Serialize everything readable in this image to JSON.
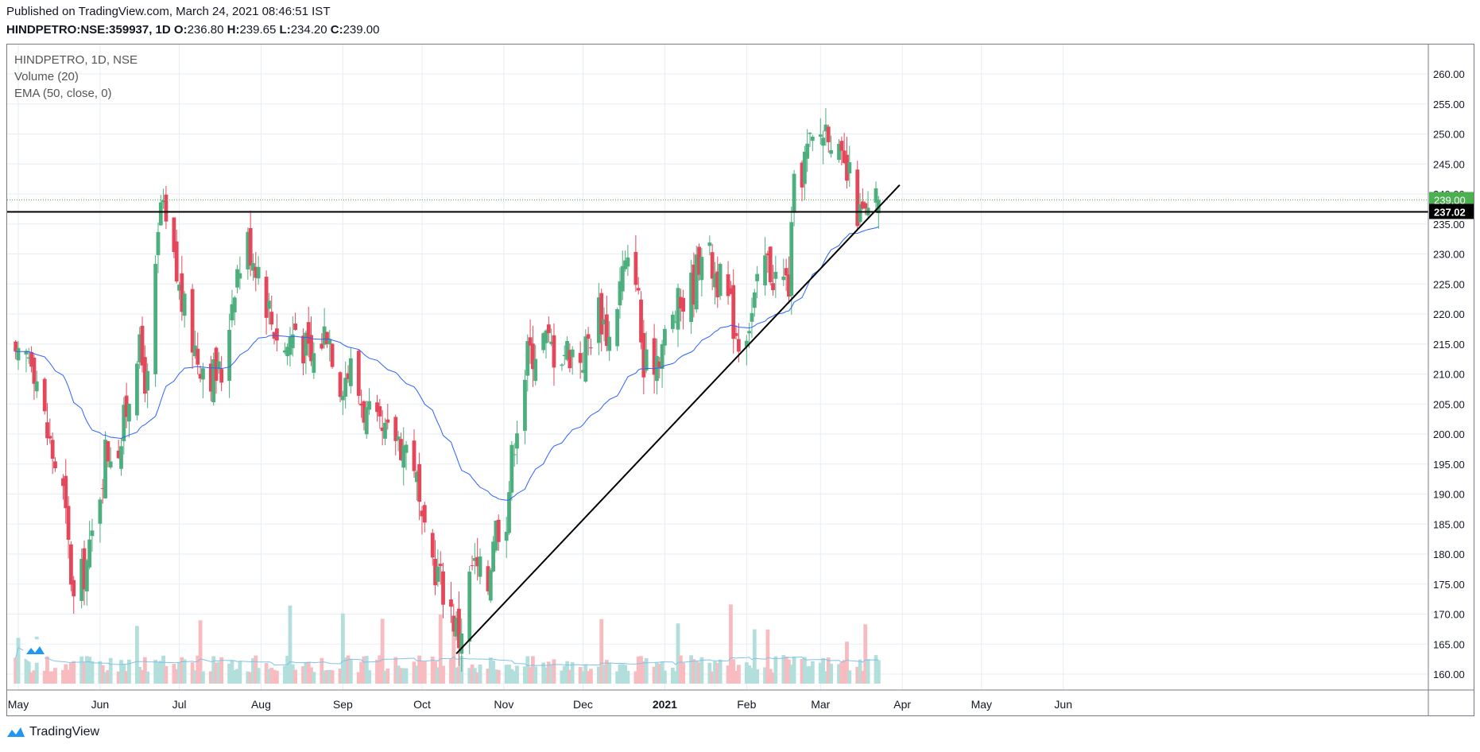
{
  "header": {
    "published": "Published on TradingView.com, March 24, 2021 08:46:51 IST",
    "symbol": "HINDPETRO:NSE:359937, 1D",
    "o_label": "O:",
    "o_value": "236.80",
    "h_label": "H:",
    "h_value": "239.65",
    "l_label": "L:",
    "l_value": "234.20",
    "c_label": "C:",
    "c_value": "239.00"
  },
  "legend": {
    "symbol": "HINDPETRO, 1D, NSE",
    "volume": "Volume (20)",
    "ema": "EMA (50, close, 0)"
  },
  "footer": {
    "brand": "TradingView"
  },
  "colors": {
    "up": "#26a69a",
    "down": "#ef5350",
    "up_candle": "#4caf7d",
    "down_candle": "#e5475a",
    "vol_up": "#b2dfdb",
    "vol_down": "#f8bbbf",
    "ema": "#2962ff",
    "grid": "#e7edf3",
    "line": "#000000",
    "last_price_bg": "#4caf50",
    "level_bg": "#000000"
  },
  "chart_data": {
    "type": "candlestick",
    "y_axis": {
      "min": 160,
      "max": 260,
      "ticks": [
        "160.00",
        "165.00",
        "170.00",
        "175.00",
        "180.00",
        "185.00",
        "190.00",
        "195.00",
        "200.00",
        "205.00",
        "210.00",
        "215.00",
        "220.00",
        "225.00",
        "230.00",
        "235.00",
        "240.00",
        "245.00",
        "250.00",
        "255.00",
        "260.00"
      ]
    },
    "x_axis": {
      "ticks": [
        "May",
        "Jun",
        "Jul",
        "Aug",
        "Sep",
        "Oct",
        "Nov",
        "Dec",
        "2021",
        "Feb",
        "Mar",
        "Apr",
        "May",
        "Jun"
      ],
      "bold_ticks": [
        "2021"
      ]
    },
    "last_price": "239.00",
    "horizontal_level": {
      "value": 237.02,
      "label": "237.02"
    },
    "trendline": {
      "start": {
        "date": "2020-10-14",
        "value": 163.4
      },
      "end": {
        "date": "2021-03-31",
        "value": 241.5
      }
    },
    "ema_period": 50,
    "close_anchors": [
      [
        "2020-04-30",
        211
      ],
      [
        "2020-05-06",
        214
      ],
      [
        "2020-05-12",
        200
      ],
      [
        "2020-05-18",
        190
      ],
      [
        "2020-05-22",
        172
      ],
      [
        "2020-05-28",
        180
      ],
      [
        "2020-06-03",
        197
      ],
      [
        "2020-06-09",
        199
      ],
      [
        "2020-06-15",
        215
      ],
      [
        "2020-06-19",
        208
      ],
      [
        "2020-06-24",
        238
      ],
      [
        "2020-06-29",
        228
      ],
      [
        "2020-07-03",
        220
      ],
      [
        "2020-07-08",
        213
      ],
      [
        "2020-07-14",
        210
      ],
      [
        "2020-07-17",
        210
      ],
      [
        "2020-07-22",
        226
      ],
      [
        "2020-07-27",
        232
      ],
      [
        "2020-07-31",
        228
      ],
      [
        "2020-08-05",
        219
      ],
      [
        "2020-08-10",
        214
      ],
      [
        "2020-08-14",
        218
      ],
      [
        "2020-08-20",
        212
      ],
      [
        "2020-08-26",
        218
      ],
      [
        "2020-08-31",
        209
      ],
      [
        "2020-09-04",
        211
      ],
      [
        "2020-09-10",
        203
      ],
      [
        "2020-09-16",
        199
      ],
      [
        "2020-09-21",
        200
      ],
      [
        "2020-09-28",
        196
      ],
      [
        "2020-10-01",
        183
      ],
      [
        "2020-10-06",
        178
      ],
      [
        "2020-10-12",
        171
      ],
      [
        "2020-10-15",
        166
      ],
      [
        "2020-10-20",
        178
      ],
      [
        "2020-10-26",
        175
      ],
      [
        "2020-10-28",
        184
      ],
      [
        "2020-11-02",
        187
      ],
      [
        "2020-11-05",
        200
      ],
      [
        "2020-11-10",
        213
      ],
      [
        "2020-11-16",
        216
      ],
      [
        "2020-11-20",
        214
      ],
      [
        "2020-11-26",
        214
      ],
      [
        "2020-12-01",
        213
      ],
      [
        "2020-12-07",
        221
      ],
      [
        "2020-12-11",
        216
      ],
      [
        "2020-12-16",
        227
      ],
      [
        "2020-12-21",
        228
      ],
      [
        "2020-12-24",
        210
      ],
      [
        "2020-12-31",
        215
      ],
      [
        "2021-01-06",
        221
      ],
      [
        "2021-01-12",
        225
      ],
      [
        "2021-01-15",
        232
      ],
      [
        "2021-01-20",
        227
      ],
      [
        "2021-01-25",
        222
      ],
      [
        "2021-01-29",
        216
      ],
      [
        "2021-02-03",
        220
      ],
      [
        "2021-02-08",
        229
      ],
      [
        "2021-02-12",
        226
      ],
      [
        "2021-02-17",
        225
      ],
      [
        "2021-02-19",
        240
      ],
      [
        "2021-02-24",
        247
      ],
      [
        "2021-03-01",
        250
      ],
      [
        "2021-03-04",
        252
      ],
      [
        "2021-03-09",
        244
      ],
      [
        "2021-03-12",
        242
      ],
      [
        "2021-03-16",
        236
      ],
      [
        "2021-03-19",
        236
      ],
      [
        "2021-03-23",
        239
      ]
    ],
    "volume_pattern": "bars along bottom, 20-period average",
    "avg_volume_line": true
  }
}
